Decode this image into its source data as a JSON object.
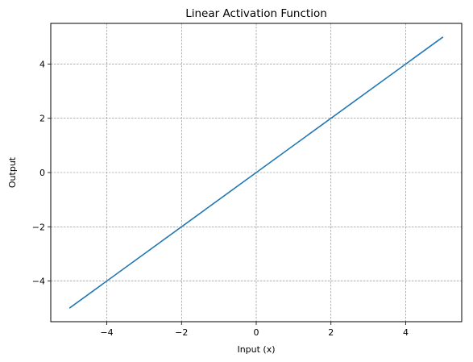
{
  "chart_data": {
    "type": "line",
    "title": "Linear Activation Function",
    "xlabel": "Input (x)",
    "ylabel": "Output",
    "xlim": [
      -5.5,
      5.5
    ],
    "ylim": [
      -5.5,
      5.5
    ],
    "x_ticks": [
      -4,
      -2,
      0,
      2,
      4
    ],
    "y_ticks": [
      -4,
      -2,
      0,
      2,
      4
    ],
    "x_tick_labels": [
      "−4",
      "−2",
      "0",
      "2",
      "4"
    ],
    "y_tick_labels": [
      "−4",
      "−2",
      "0",
      "2",
      "4"
    ],
    "grid": true,
    "grid_style": "dashed",
    "series": [
      {
        "color": "#1f77b4",
        "x": [
          -5,
          5
        ],
        "y": [
          -5,
          5
        ]
      }
    ]
  }
}
